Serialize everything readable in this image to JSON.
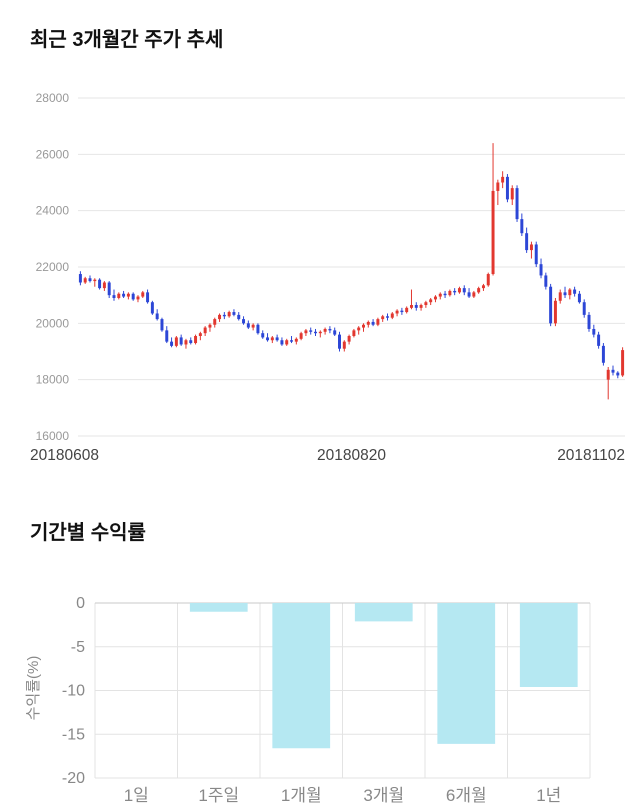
{
  "section1": {
    "title": "최근 3개월간 주가 추세"
  },
  "section2": {
    "title": "기간별 수익률"
  },
  "chart_data": [
    {
      "type": "candlestick",
      "title": "최근 3개월간 주가 추세",
      "ylim": [
        16000,
        28000
      ],
      "yticks": [
        16000,
        18000,
        20000,
        22000,
        24000,
        26000,
        28000
      ],
      "xtick_labels": [
        "20180608",
        "20180820",
        "20181102"
      ],
      "colors": {
        "up": "#e2372f",
        "down": "#2c46d6",
        "grid": "#e6e6e6",
        "tick": "#999999",
        "xlabel": "#444444"
      },
      "candles": [
        [
          21750,
          21850,
          21350,
          21450
        ],
        [
          21450,
          21650,
          21400,
          21600
        ],
        [
          21600,
          21700,
          21450,
          21500
        ],
        [
          21500,
          21600,
          21300,
          21550
        ],
        [
          21550,
          21600,
          21200,
          21250
        ],
        [
          21250,
          21500,
          21150,
          21450
        ],
        [
          21450,
          21500,
          20900,
          21000
        ],
        [
          21000,
          21200,
          20800,
          20900
        ],
        [
          20900,
          21100,
          20850,
          21050
        ],
        [
          21050,
          21150,
          20900,
          20950
        ],
        [
          20950,
          21100,
          20850,
          21050
        ],
        [
          21050,
          21100,
          20800,
          20850
        ],
        [
          20850,
          21000,
          20750,
          20950
        ],
        [
          20950,
          21150,
          20900,
          21100
        ],
        [
          21100,
          21200,
          20700,
          20750
        ],
        [
          20750,
          20800,
          20300,
          20350
        ],
        [
          20350,
          20500,
          20100,
          20150
        ],
        [
          20150,
          20200,
          19700,
          19750
        ],
        [
          19750,
          19900,
          19300,
          19350
        ],
        [
          19350,
          19500,
          19150,
          19200
        ],
        [
          19200,
          19550,
          19150,
          19500
        ],
        [
          19500,
          19600,
          19200,
          19250
        ],
        [
          19250,
          19450,
          19100,
          19400
        ],
        [
          19400,
          19500,
          19250,
          19300
        ],
        [
          19300,
          19600,
          19250,
          19550
        ],
        [
          19550,
          19700,
          19400,
          19650
        ],
        [
          19650,
          19900,
          19550,
          19850
        ],
        [
          19850,
          20000,
          19700,
          19950
        ],
        [
          19950,
          20200,
          19850,
          20150
        ],
        [
          20150,
          20350,
          20050,
          20300
        ],
        [
          20300,
          20400,
          20150,
          20250
        ],
        [
          20250,
          20450,
          20200,
          20400
        ],
        [
          20400,
          20500,
          20250,
          20300
        ],
        [
          20300,
          20400,
          20100,
          20150
        ],
        [
          20150,
          20250,
          19950,
          20000
        ],
        [
          20000,
          20100,
          19800,
          19850
        ],
        [
          19850,
          20000,
          19750,
          19950
        ],
        [
          19950,
          20000,
          19600,
          19650
        ],
        [
          19650,
          19750,
          19450,
          19500
        ],
        [
          19500,
          19650,
          19350,
          19400
        ],
        [
          19400,
          19550,
          19300,
          19500
        ],
        [
          19500,
          19600,
          19350,
          19400
        ],
        [
          19400,
          19500,
          19200,
          19250
        ],
        [
          19250,
          19450,
          19200,
          19400
        ],
        [
          19400,
          19550,
          19300,
          19350
        ],
        [
          19350,
          19500,
          19250,
          19450
        ],
        [
          19450,
          19700,
          19400,
          19650
        ],
        [
          19650,
          19800,
          19550,
          19750
        ],
        [
          19750,
          19850,
          19600,
          19700
        ],
        [
          19700,
          19800,
          19550,
          19650
        ],
        [
          19650,
          19750,
          19500,
          19700
        ],
        [
          19700,
          19850,
          19600,
          19800
        ],
        [
          19800,
          19900,
          19650,
          19750
        ],
        [
          19750,
          19850,
          19550,
          19600
        ],
        [
          19600,
          19700,
          19000,
          19100
        ],
        [
          19100,
          19400,
          19000,
          19350
        ],
        [
          19350,
          19600,
          19250,
          19550
        ],
        [
          19550,
          19800,
          19500,
          19750
        ],
        [
          19750,
          19900,
          19600,
          19850
        ],
        [
          19850,
          20000,
          19700,
          19950
        ],
        [
          19950,
          20100,
          19850,
          20050
        ],
        [
          20050,
          20150,
          19900,
          19950
        ],
        [
          19950,
          20200,
          19900,
          20150
        ],
        [
          20150,
          20300,
          20050,
          20250
        ],
        [
          20250,
          20350,
          20100,
          20200
        ],
        [
          20200,
          20400,
          20150,
          20350
        ],
        [
          20350,
          20500,
          20250,
          20450
        ],
        [
          20450,
          20550,
          20300,
          20400
        ],
        [
          20400,
          20600,
          20350,
          20550
        ],
        [
          20550,
          21200,
          20500,
          20650
        ],
        [
          20650,
          20750,
          20450,
          20550
        ],
        [
          20550,
          20700,
          20450,
          20650
        ],
        [
          20650,
          20800,
          20550,
          20750
        ],
        [
          20750,
          20900,
          20650,
          20850
        ],
        [
          20850,
          21000,
          20750,
          20950
        ],
        [
          20950,
          21100,
          20850,
          21050
        ],
        [
          21050,
          21150,
          20900,
          21000
        ],
        [
          21000,
          21200,
          20950,
          21150
        ],
        [
          21150,
          21250,
          21000,
          21100
        ],
        [
          21100,
          21300,
          21050,
          21250
        ],
        [
          21250,
          21350,
          21000,
          21100
        ],
        [
          21100,
          21250,
          20900,
          20950
        ],
        [
          20950,
          21150,
          20900,
          21100
        ],
        [
          21100,
          21300,
          21050,
          21250
        ],
        [
          21250,
          21400,
          21150,
          21350
        ],
        [
          21350,
          21800,
          21300,
          21750
        ],
        [
          21750,
          26400,
          21700,
          24700
        ],
        [
          24700,
          25100,
          24200,
          25000
        ],
        [
          25000,
          25400,
          24800,
          25200
        ],
        [
          25200,
          25300,
          24300,
          24400
        ],
        [
          24400,
          24900,
          24200,
          24800
        ],
        [
          24800,
          24900,
          23600,
          23700
        ],
        [
          23700,
          23900,
          23100,
          23200
        ],
        [
          23200,
          23400,
          22500,
          22600
        ],
        [
          22600,
          22900,
          22300,
          22800
        ],
        [
          22800,
          22900,
          22000,
          22100
        ],
        [
          22100,
          22300,
          21600,
          21700
        ],
        [
          21700,
          21800,
          21200,
          21300
        ],
        [
          21300,
          21400,
          19900,
          20000
        ],
        [
          20000,
          20900,
          19900,
          20800
        ],
        [
          20800,
          21200,
          20700,
          21100
        ],
        [
          21100,
          21300,
          20900,
          21000
        ],
        [
          21000,
          21250,
          20850,
          21200
        ],
        [
          21200,
          21300,
          20950,
          21050
        ],
        [
          21050,
          21150,
          20700,
          20750
        ],
        [
          20750,
          20850,
          20200,
          20300
        ],
        [
          20300,
          20400,
          19700,
          19800
        ],
        [
          19800,
          19950,
          19500,
          19600
        ],
        [
          19600,
          19700,
          19100,
          19200
        ],
        [
          19200,
          19300,
          18500,
          18600
        ],
        [
          18000,
          18450,
          17300,
          18350
        ],
        [
          18350,
          18500,
          18150,
          18250
        ],
        [
          18250,
          18300,
          18050,
          18150
        ],
        [
          18150,
          19150,
          18100,
          19050
        ]
      ]
    },
    {
      "type": "bar",
      "title": "기간별 수익률",
      "ylabel": "수익률(%)",
      "categories": [
        "1일",
        "1주일",
        "1개월",
        "3개월",
        "6개월",
        "1년"
      ],
      "values": [
        0,
        -1.0,
        -16.6,
        -2.1,
        -16.1,
        -9.6
      ],
      "ylim": [
        -20,
        0
      ],
      "yticks": [
        0,
        -5,
        -10,
        -15,
        -20
      ],
      "bar_color": "#b5e8f2",
      "colors": {
        "grid": "#e3e3e3",
        "zero_line": "#c9c9c9",
        "tick": "#888888",
        "category": "#888888",
        "ylabel": "#888888"
      },
      "grid": true,
      "legend": false
    }
  ]
}
